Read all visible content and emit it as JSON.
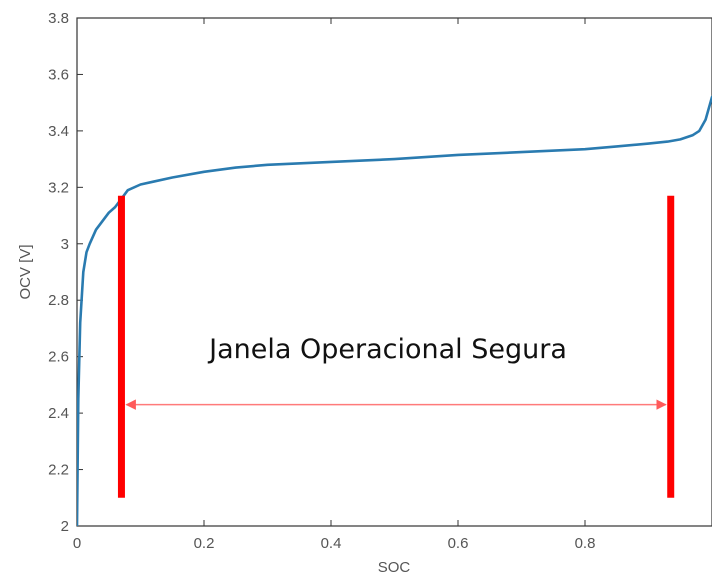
{
  "chart_data": {
    "type": "line",
    "title": "",
    "xlabel": "SOC",
    "ylabel": "OCV [V]",
    "xlim": [
      0,
      1
    ],
    "ylim": [
      2,
      3.8
    ],
    "xticks": [
      "0",
      "0.2",
      "0.4",
      "0.6",
      "0.8"
    ],
    "yticks": [
      "2",
      "2.2",
      "2.4",
      "2.6",
      "2.8",
      "3",
      "3.2",
      "3.4",
      "3.6",
      "3.8"
    ],
    "grid": false,
    "series": [
      {
        "color": "#2a7bb0",
        "x": [
          0.0,
          0.002,
          0.005,
          0.01,
          0.015,
          0.02,
          0.03,
          0.04,
          0.05,
          0.06,
          0.07,
          0.08,
          0.1,
          0.12,
          0.15,
          0.2,
          0.25,
          0.3,
          0.4,
          0.5,
          0.6,
          0.7,
          0.8,
          0.85,
          0.9,
          0.93,
          0.95,
          0.97,
          0.98,
          0.99,
          1.0
        ],
        "y": [
          2.0,
          2.45,
          2.72,
          2.9,
          2.97,
          3.0,
          3.05,
          3.08,
          3.11,
          3.13,
          3.16,
          3.19,
          3.21,
          3.22,
          3.235,
          3.255,
          3.27,
          3.28,
          3.29,
          3.3,
          3.315,
          3.325,
          3.335,
          3.345,
          3.355,
          3.362,
          3.37,
          3.385,
          3.4,
          3.44,
          3.52
        ]
      }
    ],
    "annotations": {
      "window_label": "Janela Operacional Segura",
      "window_lower_soc": 0.07,
      "window_upper_soc": 0.935,
      "marker_ylim": [
        2.1,
        3.17
      ],
      "arrow_voltage": 2.43,
      "marker_color": "#ff0000",
      "arrow_color": "#ff7a7a"
    }
  }
}
